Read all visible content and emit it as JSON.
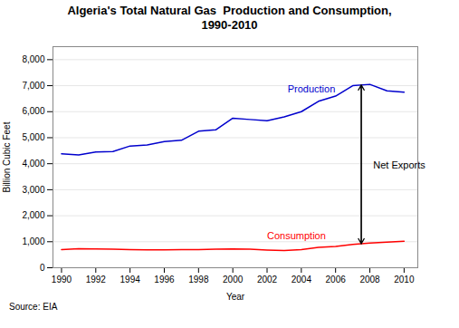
{
  "chart_data": {
    "type": "line",
    "title": "Algeria's Total Natural Gas  Production and Consumption,\n1990-2010",
    "x_label": "Year",
    "y_label": "Billion Cubic Feet",
    "source": "Source: EIA",
    "x": [
      1990,
      1991,
      1992,
      1993,
      1994,
      1995,
      1996,
      1997,
      1998,
      1999,
      2000,
      2001,
      2002,
      2003,
      2004,
      2005,
      2006,
      2007,
      2008,
      2009,
      2010
    ],
    "series": [
      {
        "name": "Production",
        "color": "#0000CD",
        "values": [
          4380,
          4340,
          4450,
          4470,
          4680,
          4720,
          4850,
          4900,
          5250,
          5300,
          5750,
          5700,
          5650,
          5800,
          6000,
          6400,
          6600,
          7000,
          7050,
          6800,
          6750
        ]
      },
      {
        "name": "Consumption",
        "color": "#FF0000",
        "values": [
          700,
          730,
          720,
          710,
          700,
          690,
          690,
          700,
          700,
          710,
          720,
          710,
          680,
          660,
          700,
          780,
          820,
          900,
          950,
          980,
          1020
        ]
      }
    ],
    "annotations": [
      {
        "text": "Production",
        "x": 2003.2,
        "y": 6750,
        "color": "#0000CD"
      },
      {
        "text": "Consumption",
        "x": 2002.0,
        "y": 1100,
        "color": "#FF0000"
      },
      {
        "text": "Net Exports",
        "x": 2008.2,
        "y": 3800,
        "color": "black"
      }
    ],
    "arrow": {
      "x": 2007.5,
      "y1": 925,
      "y2": 7025
    },
    "xlim": [
      1989.5,
      2010.8
    ],
    "xticks": [
      1990,
      1992,
      1994,
      1996,
      1998,
      2000,
      2002,
      2004,
      2006,
      2008,
      2010
    ],
    "ylim": [
      0,
      8500
    ],
    "yticks": [
      0,
      {
        "value": 1000,
        "label": "1,000"
      },
      {
        "value": 2000,
        "label": "2,000"
      },
      {
        "value": 3000,
        "label": "3,000"
      },
      {
        "value": 4000,
        "label": "4,000"
      },
      {
        "value": 5000,
        "label": "5,000"
      },
      {
        "value": 6000,
        "label": "6,000"
      },
      {
        "value": 7000,
        "label": "7,000"
      },
      {
        "value": 8000,
        "label": "8,000"
      }
    ],
    "grid": true
  }
}
